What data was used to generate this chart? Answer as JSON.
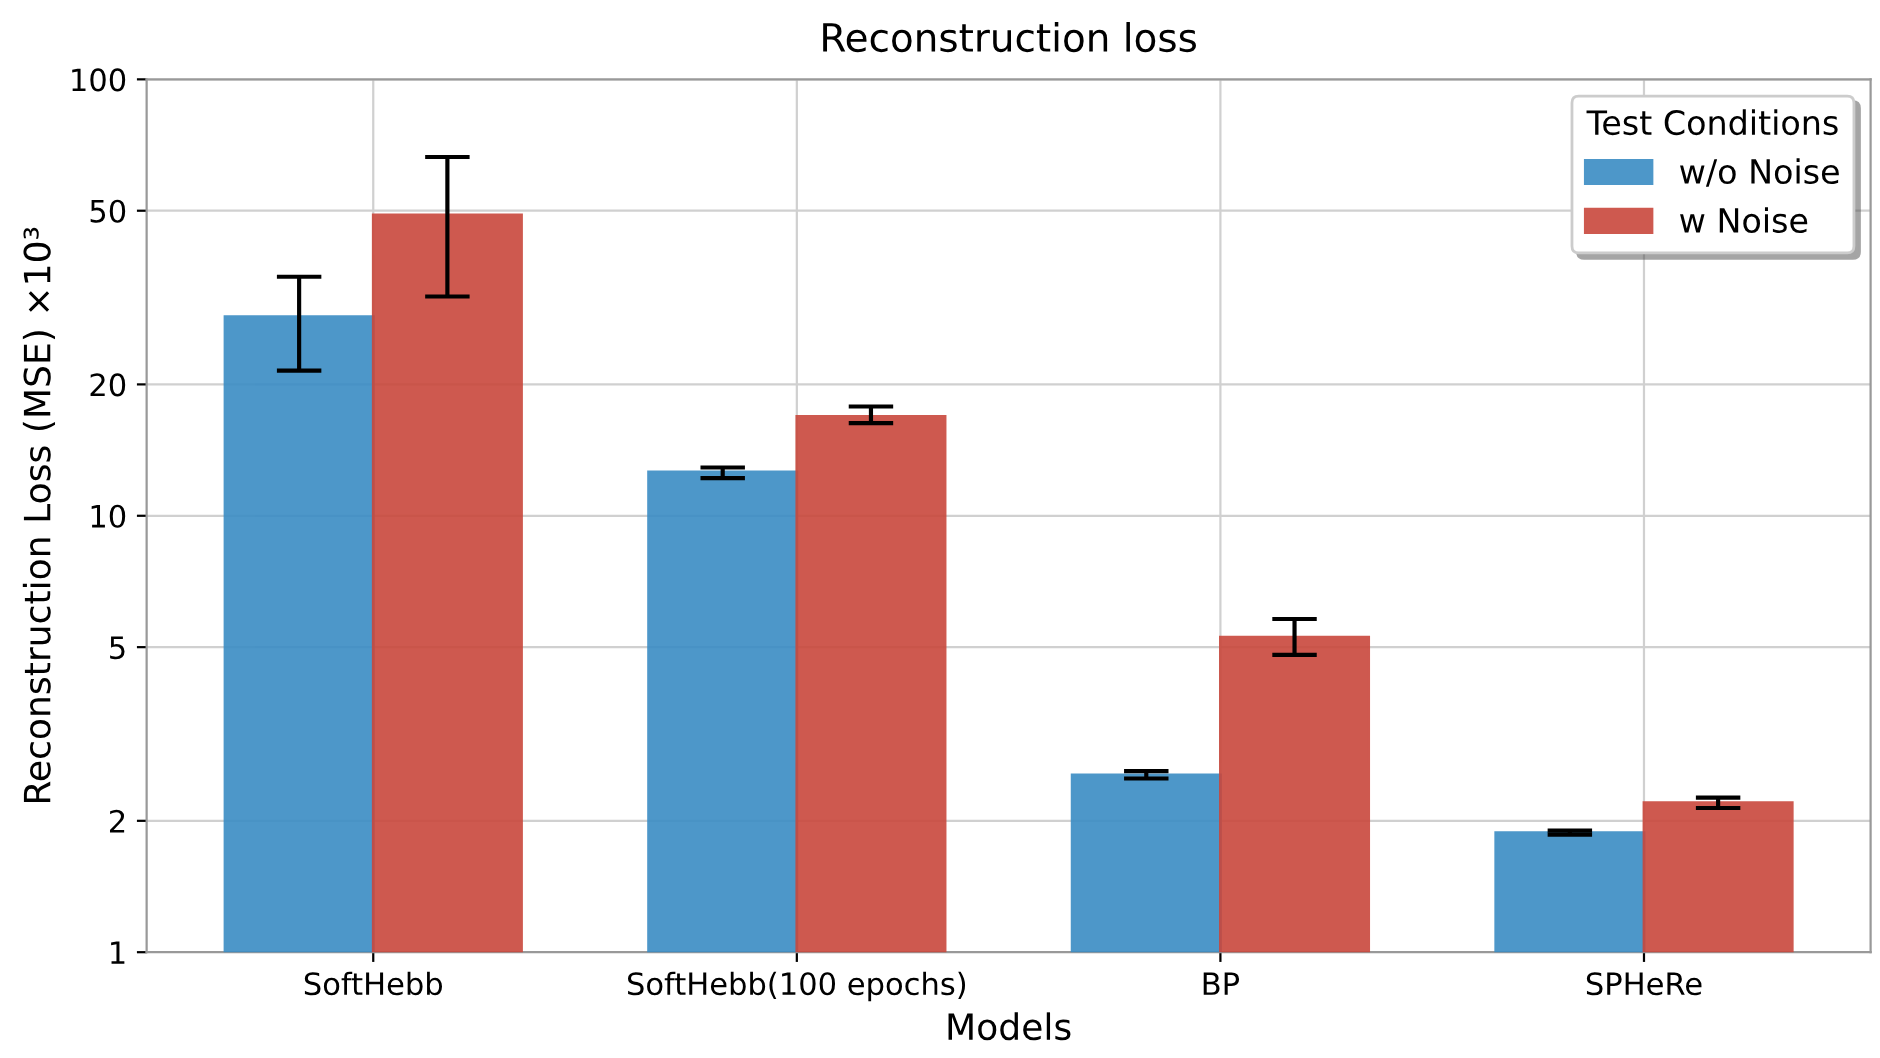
{
  "chart_data": {
    "type": "bar",
    "title": "Reconstruction loss",
    "xlabel": "Models",
    "ylabel": "Reconstruction Loss (MSE) ×10³",
    "legend_title": "Test Conditions",
    "categories": [
      "SoftHebb",
      "SoftHebb(100 epochs)",
      "BP",
      "SPHeRe"
    ],
    "series": [
      {
        "name": "w/o Noise",
        "color": "#3a8cc4",
        "values": [
          28.6,
          12.6,
          2.55,
          1.88
        ],
        "errors": [
          [
            21.5,
            35.3
          ],
          [
            12.2,
            12.9
          ],
          [
            2.5,
            2.6
          ],
          [
            1.86,
            1.9
          ]
        ]
      },
      {
        "name": "w Noise",
        "color": "#c9483c",
        "values": [
          48.9,
          16.9,
          5.27,
          2.2
        ],
        "errors": [
          [
            31.8,
            66.4
          ],
          [
            16.3,
            17.8
          ],
          [
            4.8,
            5.8
          ],
          [
            2.14,
            2.26
          ]
        ]
      }
    ],
    "log": "y",
    "ylim": [
      1,
      100
    ],
    "yticks": [
      1,
      2,
      5,
      10,
      20,
      50,
      100
    ],
    "grid": true,
    "legend": "top right"
  }
}
